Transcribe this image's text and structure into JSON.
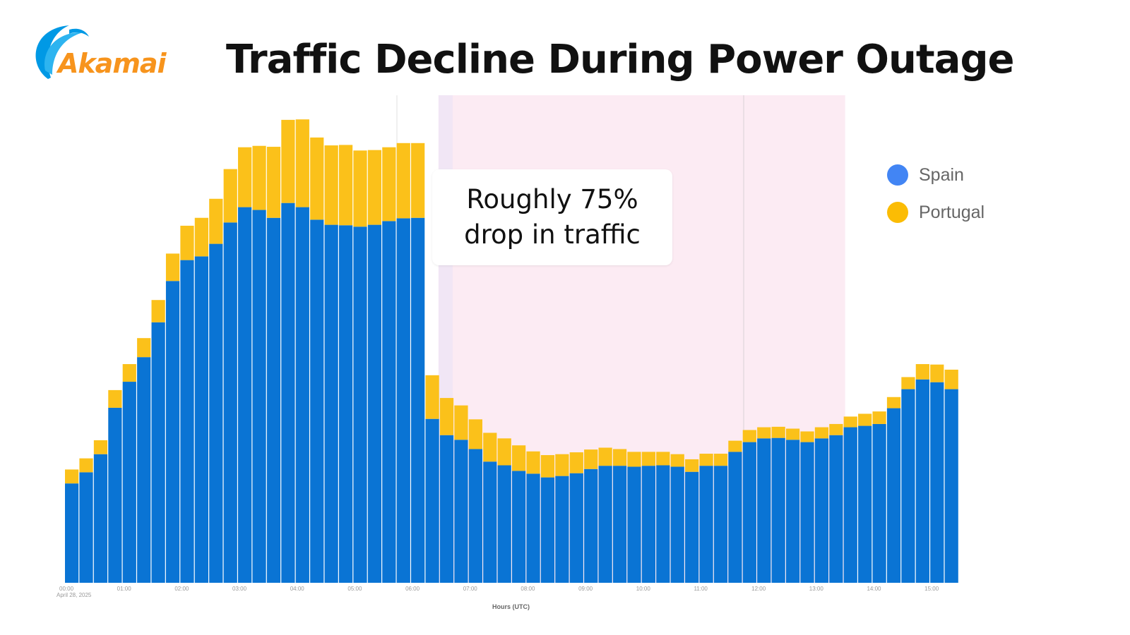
{
  "logo": {
    "text": "Akamai"
  },
  "chart_data": {
    "type": "bar",
    "stacked": true,
    "title": "Traffic Decline During Power Outage",
    "xlabel": "Hours (UTC)",
    "ylabel": "",
    "date_label": "April 28, 2025",
    "x_tick_labels": [
      "00:00",
      "01:00",
      "02:00",
      "03:00",
      "04:00",
      "05:00",
      "06:00",
      "07:00",
      "08:00",
      "09:00",
      "10:00",
      "11:00",
      "12:00",
      "13:00",
      "14:00",
      "15:00"
    ],
    "interval_minutes": 15,
    "ylim": [
      0,
      105
    ],
    "y_units": "relative (peak = 100)",
    "grid": false,
    "legend_position": "right",
    "shaded_region_hours": [
      6.5,
      13.5
    ],
    "annotation": {
      "line1": "Roughly 75%",
      "line2": "drop in traffic"
    },
    "series": [
      {
        "name": "Spain",
        "color": "#0a74d4",
        "legend_color": "#4285f4",
        "values": [
          21.4,
          23.8,
          27.7,
          37.7,
          43.3,
          48.6,
          56.1,
          65.0,
          69.5,
          70.3,
          73.0,
          77.6,
          80.9,
          80.3,
          78.6,
          81.8,
          80.9,
          78.2,
          77.1,
          77.0,
          76.7,
          77.1,
          77.9,
          78.5,
          78.6,
          35.3,
          31.8,
          30.8,
          28.8,
          26.1,
          25.3,
          24.1,
          23.5,
          22.7,
          23.0,
          23.6,
          24.5,
          25.2,
          25.2,
          25.0,
          25.2,
          25.3,
          25.0,
          23.9,
          25.2,
          25.2,
          28.2,
          30.3,
          31.1,
          31.2,
          30.8,
          30.3,
          31.1,
          31.8,
          33.5,
          33.8,
          34.2,
          37.6,
          41.7,
          43.8,
          43.2,
          41.7
        ]
      },
      {
        "name": "Portugal",
        "color": "#fbc11a",
        "legend_color": "#fbbc04",
        "values": [
          3.0,
          3.0,
          3.0,
          3.8,
          3.8,
          4.1,
          4.8,
          5.9,
          7.4,
          8.3,
          9.7,
          11.5,
          12.9,
          13.8,
          15.3,
          17.9,
          18.9,
          17.7,
          17.1,
          17.3,
          16.4,
          16.1,
          15.9,
          16.2,
          16.1,
          9.4,
          8.0,
          7.4,
          6.4,
          6.2,
          5.8,
          5.5,
          4.8,
          4.8,
          4.7,
          4.5,
          4.2,
          3.9,
          3.6,
          3.2,
          3.0,
          2.9,
          2.7,
          2.7,
          2.6,
          2.6,
          2.4,
          2.6,
          2.4,
          2.4,
          2.4,
          2.3,
          2.4,
          2.4,
          2.3,
          2.6,
          2.7,
          2.4,
          2.6,
          3.3,
          3.8,
          4.2
        ]
      }
    ]
  }
}
